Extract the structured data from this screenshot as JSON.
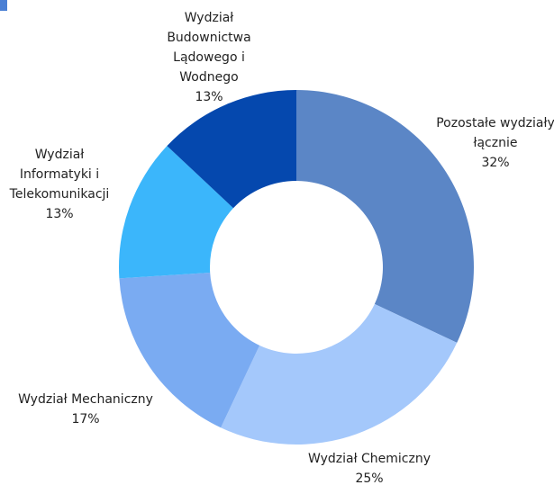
{
  "chart_data": {
    "type": "donut",
    "categories": [
      "Pozostałe wydziały łącznie",
      "Wydział Chemiczny",
      "Wydział Mechaniczny",
      "Wydział Informatyki i Telekomunikacji",
      "Wydział Budownictwa Lądowego i Wodnego"
    ],
    "values": [
      32,
      25,
      17,
      13,
      13
    ],
    "value_labels": [
      "32%",
      "25%",
      "17%",
      "13%",
      "13%"
    ],
    "colors": [
      "#5b86c6",
      "#a4c8fb",
      "#7aabf2",
      "#3bb6fb",
      "#0548ae"
    ]
  }
}
